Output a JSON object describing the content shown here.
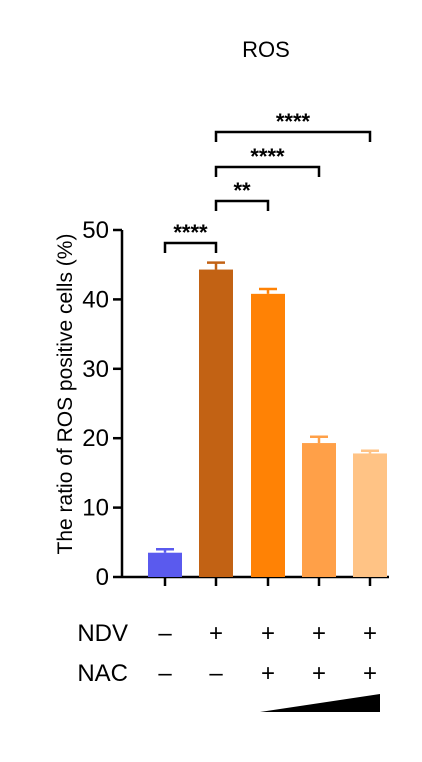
{
  "chart_data": {
    "type": "bar",
    "title": "ROS",
    "ylabel": "The ratio of ROS positive cells (%)",
    "xlabel": "",
    "ylim": [
      0,
      50
    ],
    "yticks": [
      "0",
      "10",
      "20",
      "30",
      "40",
      "50"
    ],
    "grid": false,
    "bars": [
      {
        "value": 3.5,
        "error": 0.5,
        "color": "#5a5aee"
      },
      {
        "value": 44.3,
        "error": 1.0,
        "color": "#c26214"
      },
      {
        "value": 40.8,
        "error": 0.7,
        "color": "#ff8205"
      },
      {
        "value": 19.3,
        "error": 0.9,
        "color": "#ffa048"
      },
      {
        "value": 17.8,
        "error": 0.4,
        "color": "#ffc385"
      }
    ],
    "treatments": [
      {
        "label": "NDV",
        "signs": [
          "–",
          "+",
          "+",
          "+",
          "+"
        ]
      },
      {
        "label": "NAC",
        "signs": [
          "–",
          "–",
          "+",
          "+",
          "+"
        ]
      }
    ],
    "significance": [
      {
        "from": 0,
        "to": 1,
        "label": "****"
      },
      {
        "from": 1,
        "to": 2,
        "label": "**"
      },
      {
        "from": 1,
        "to": 3,
        "label": "****"
      },
      {
        "from": 1,
        "to": 4,
        "label": "****"
      }
    ],
    "dose_gradient": {
      "from_bar": 2,
      "to_bar": 4,
      "color": "#000000"
    }
  }
}
